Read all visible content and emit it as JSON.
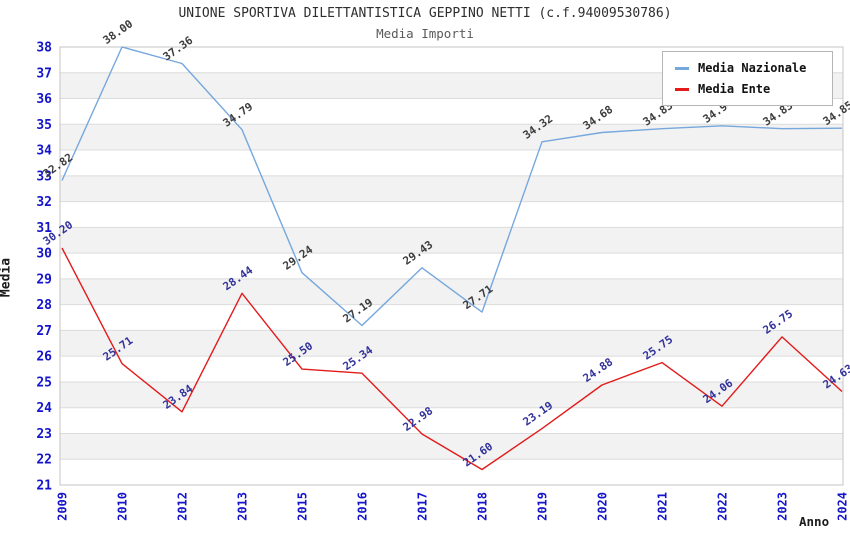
{
  "header": {
    "title": "UNIONE SPORTIVA DILETTANTISTICA GEPPINO NETTI (c.f.94009530786)",
    "subtitle": "Media Importi"
  },
  "axes": {
    "y_title": "Media",
    "x_title": "Anno",
    "y_ticks": [
      21,
      22,
      23,
      24,
      25,
      26,
      27,
      28,
      29,
      30,
      31,
      32,
      33,
      34,
      35,
      36,
      37,
      38
    ]
  },
  "legend": {
    "items": [
      {
        "label": "Media Nazionale",
        "color": "#76a7dd"
      },
      {
        "label": "Media Ente",
        "color": "#e31b1b"
      }
    ]
  },
  "chart_data": {
    "type": "line",
    "title": "UNIONE SPORTIVA DILETTANTISTICA GEPPINO NETTI (c.f.94009530786)",
    "subtitle": "Media Importi",
    "xlabel": "Anno",
    "ylabel": "Media",
    "ylim": [
      21,
      38
    ],
    "y_tick_step": 1,
    "grid": true,
    "legend_position": "top-right",
    "categories": [
      "2009",
      "2010",
      "2012",
      "2013",
      "2015",
      "2016",
      "2017",
      "2018",
      "2019",
      "2020",
      "2021",
      "2022",
      "2023",
      "2024"
    ],
    "series": [
      {
        "name": "Media Nazionale",
        "color": "#76a7dd",
        "label_color": "#3c3c3c",
        "values": [
          32.82,
          38.0,
          37.36,
          34.79,
          29.24,
          27.19,
          29.43,
          27.71,
          34.32,
          34.68,
          34.83,
          34.94,
          34.83,
          34.85
        ]
      },
      {
        "name": "Media Ente",
        "color": "#e31b1b",
        "label_color": "#32329b",
        "values": [
          30.2,
          25.71,
          23.84,
          28.44,
          25.5,
          25.34,
          22.98,
          21.6,
          23.19,
          24.88,
          25.75,
          24.06,
          26.75,
          24.63
        ]
      }
    ],
    "styles": {
      "band_fill": "#f2f2f2",
      "gridline_color": "#dcdcdc",
      "plot_border_color": "#c6c6c6",
      "tick_label_color": "#1414cc"
    }
  }
}
